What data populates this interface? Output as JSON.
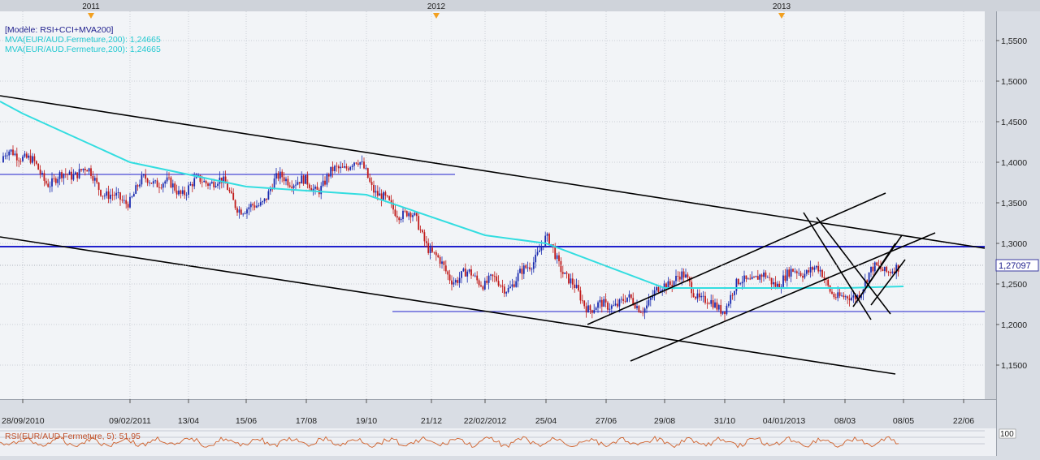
{
  "chart_data": {
    "type": "candlestick",
    "title": "[Modèle: RSI+CCI+MVA200]",
    "indicator_labels": [
      "MVA(EUR/AUD.Fermeture,200): 1,24665",
      "MVA(EUR/AUD.Fermeture,200): 1,24665"
    ],
    "year_markers": [
      "2011",
      "2012",
      "2013"
    ],
    "y_axis": {
      "side": "right",
      "ylim": [
        1.1,
        1.58
      ],
      "ticks": [
        "1,5500",
        "1,5000",
        "1,4500",
        "1,4000",
        "1,3500",
        "1,3000",
        "1,2500",
        "1,2000",
        "1,1500"
      ],
      "tick_values": [
        1.55,
        1.5,
        1.45,
        1.4,
        1.35,
        1.3,
        1.25,
        1.2,
        1.15
      ]
    },
    "x_axis": {
      "labels": [
        "28/09/2010",
        "09/02/2011",
        "13/04",
        "15/06",
        "17/08",
        "19/10",
        "21/12",
        "22/02/2012",
        "25/04",
        "27/06",
        "29/08",
        "31/10",
        "04/01/2013",
        "08/03",
        "08/05",
        "22/06"
      ]
    },
    "current_price": {
      "label": "1,27097",
      "value": 1.27097
    },
    "series": [
      {
        "name": "EUR/AUD",
        "approx_closes": [
          {
            "x": "28/09/2010",
            "y": 1.4
          },
          {
            "x": "09/02/2011",
            "y": 1.36
          },
          {
            "x": "13/04",
            "y": 1.38
          },
          {
            "x": "15/06",
            "y": 1.35
          },
          {
            "x": "17/08",
            "y": 1.38
          },
          {
            "x": "19/10",
            "y": 1.39
          },
          {
            "x": "21/12",
            "y": 1.29
          },
          {
            "x": "22/02/2012",
            "y": 1.24
          },
          {
            "x": "25/04",
            "y": 1.29
          },
          {
            "x": "27/06",
            "y": 1.21
          },
          {
            "x": "29/08",
            "y": 1.25
          },
          {
            "x": "31/10",
            "y": 1.23
          },
          {
            "x": "04/01/2013",
            "y": 1.27
          },
          {
            "x": "08/03",
            "y": 1.24
          },
          {
            "x": "08/05",
            "y": 1.27
          }
        ]
      },
      {
        "name": "MVA(EUR/AUD.Fermeture,200)",
        "approx_values": [
          {
            "x": "28/09/2010",
            "y": 1.46
          },
          {
            "x": "09/02/2011",
            "y": 1.4
          },
          {
            "x": "15/06",
            "y": 1.37
          },
          {
            "x": "19/10",
            "y": 1.36
          },
          {
            "x": "22/02/2012",
            "y": 1.31
          },
          {
            "x": "25/04",
            "y": 1.3
          },
          {
            "x": "29/08",
            "y": 1.245
          },
          {
            "x": "31/10",
            "y": 1.245
          },
          {
            "x": "08/03",
            "y": 1.245
          },
          {
            "x": "08/05",
            "y": 1.247
          }
        ]
      }
    ],
    "horizontal_lines": [
      1.385,
      1.296,
      1.216
    ],
    "grid": true,
    "rsi_panel": {
      "label": "RSI(EUR/AUD.Fermeture, 5): 51,95",
      "axis_top_label": "100",
      "value": 51.95
    }
  },
  "colors": {
    "background": "#d9dde4",
    "plot_background": "#f2f4f7",
    "candle_up": "#1a2bb0",
    "candle_down": "#c01a1a",
    "mva": "#33dde0",
    "trendline": "#000000",
    "support_line": "#2020cc",
    "rsi_line": "#d0602a",
    "label_text": "#1c1c8c",
    "year_marker": "#f2a020"
  }
}
